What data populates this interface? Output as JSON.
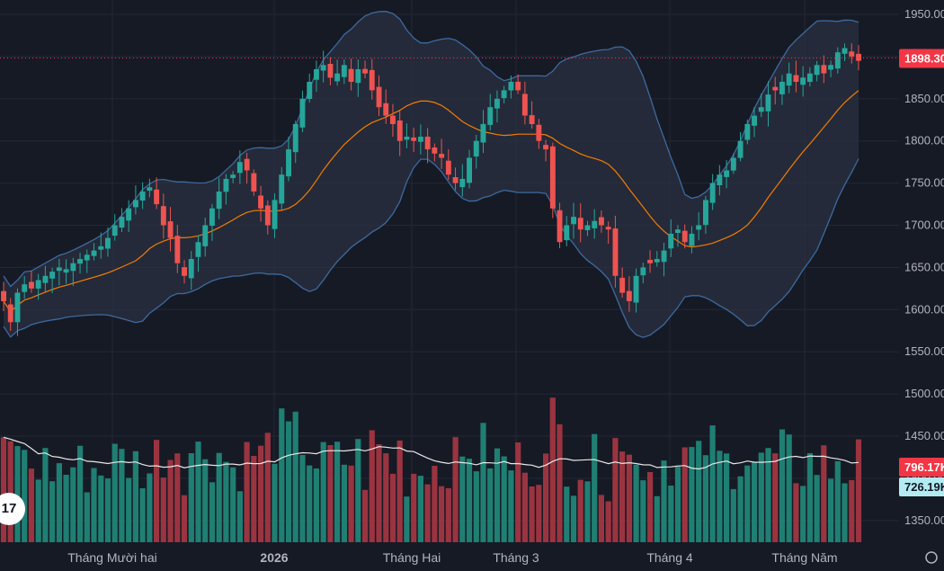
{
  "colors": {
    "background": "#161a25",
    "grid": "#242836",
    "up": "#26a69a",
    "down": "#ef5350",
    "volume_up": "#1f7f73",
    "volume_down": "#9a3440",
    "band_line": "#3d6a9f",
    "band_fill": "#2a3040",
    "basis_line": "#f57c00",
    "volume_ma_line": "#e8e8e8",
    "axis_text": "#b2b5be",
    "price_label_bg": "#f23645",
    "volume_label_bg": "#f23645",
    "volume_ma_label_bg": "#b2ebf2"
  },
  "chart_data": {
    "type": "candlestick",
    "x_tick_labels": [
      "Tháng Mười hai",
      "2026",
      "Tháng Hai",
      "Tháng 3",
      "Tháng 4",
      "Tháng Năm"
    ],
    "y_tick_labels": [
      "1950.00",
      "1900.00",
      "1850.00",
      "1800.00",
      "1750.00",
      "1700.00",
      "1650.00",
      "1600.00",
      "1550.00",
      "1500.00",
      "1450.00",
      "1400.00",
      "1350.00"
    ],
    "price_ylim": [
      1350,
      1960
    ],
    "last_price": 1898.3,
    "last_price_label": "1898.30",
    "volume_last_label": "796.17K",
    "volume_ma_label": "726.19K",
    "logo_text": "17",
    "closes": [
      1610,
      1585,
      1620,
      1630,
      1625,
      1635,
      1640,
      1645,
      1650,
      1648,
      1655,
      1660,
      1665,
      1670,
      1675,
      1685,
      1700,
      1710,
      1720,
      1730,
      1740,
      1745,
      1725,
      1700,
      1685,
      1655,
      1640,
      1660,
      1680,
      1700,
      1720,
      1740,
      1755,
      1760,
      1775,
      1765,
      1740,
      1720,
      1700,
      1730,
      1760,
      1790,
      1820,
      1850,
      1870,
      1885,
      1890,
      1875,
      1880,
      1890,
      1870,
      1885,
      1880,
      1860,
      1840,
      1830,
      1820,
      1800,
      1805,
      1800,
      1805,
      1790,
      1785,
      1780,
      1760,
      1750,
      1755,
      1780,
      1800,
      1820,
      1840,
      1850,
      1860,
      1870,
      1860,
      1830,
      1820,
      1800,
      1790,
      1720,
      1680,
      1700,
      1710,
      1695,
      1700,
      1705,
      1700,
      1695,
      1640,
      1620,
      1610,
      1640,
      1650,
      1655,
      1660,
      1670,
      1690,
      1695,
      1680,
      1690,
      1700,
      1730,
      1750,
      1760,
      1765,
      1780,
      1800,
      1820,
      1830,
      1840,
      1855,
      1860,
      1870,
      1880,
      1870,
      1875,
      1880,
      1890,
      1880,
      1890,
      1905,
      1910,
      1900,
      1895
    ]
  }
}
